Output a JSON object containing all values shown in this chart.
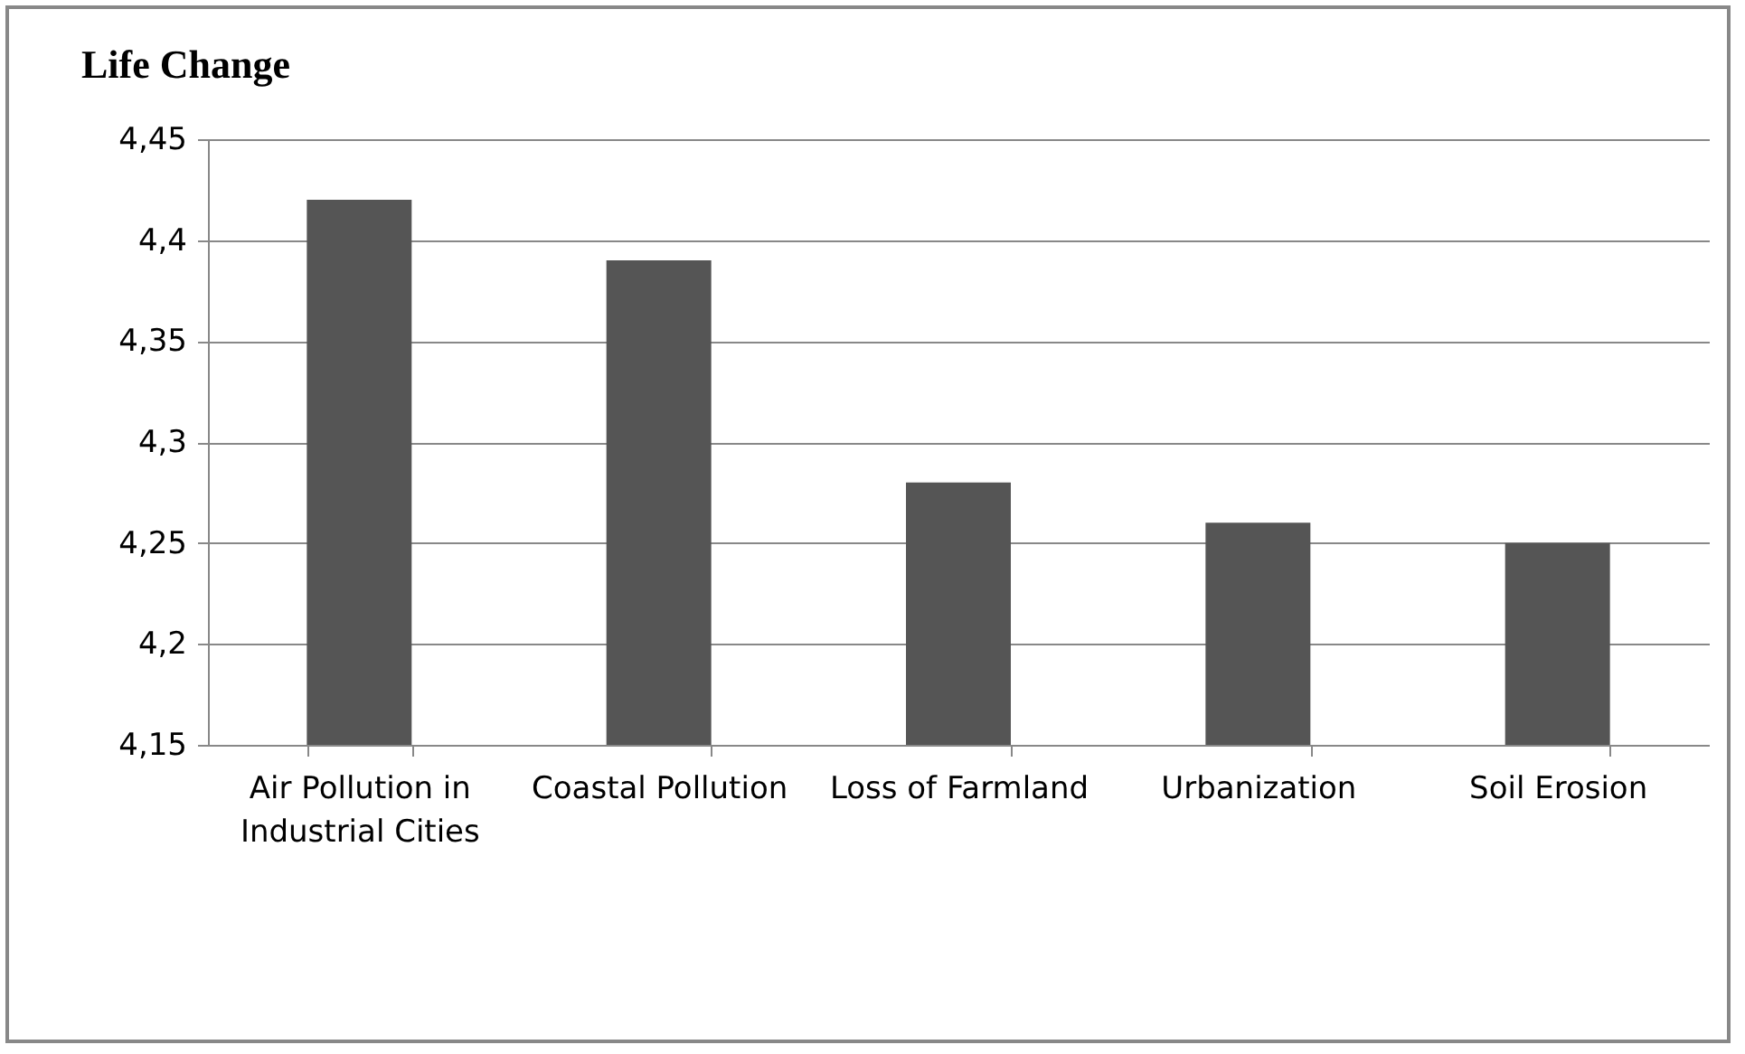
{
  "chart_data": {
    "type": "bar",
    "title": "Life Change",
    "categories": [
      "Air Pollution in Industrial Cities",
      "Coastal Pollution",
      "Loss of Farmland",
      "Urbanization",
      "Soil Erosion"
    ],
    "values": [
      4.42,
      4.39,
      4.28,
      4.26,
      4.25
    ],
    "color": "#555555",
    "ylim": [
      4.15,
      4.45
    ],
    "yticks": [
      {
        "value": 4.15,
        "label": "4,15"
      },
      {
        "value": 4.2,
        "label": "4,2"
      },
      {
        "value": 4.25,
        "label": "4,25"
      },
      {
        "value": 4.3,
        "label": "4,3"
      },
      {
        "value": 4.35,
        "label": "4,35"
      },
      {
        "value": 4.4,
        "label": "4,4"
      },
      {
        "value": 4.45,
        "label": "4,45"
      }
    ],
    "grid": "y"
  }
}
